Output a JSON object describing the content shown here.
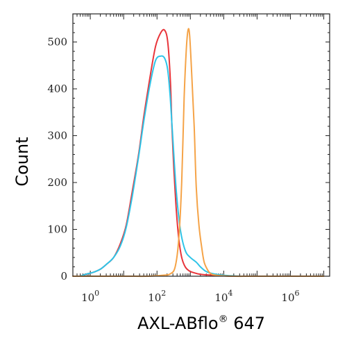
{
  "chart_data": {
    "type": "line",
    "xlabel": "AXL-ABflo",
    "xlabel_sup": "®",
    "xlabel_suffix": " 647",
    "ylabel": "Count",
    "x_scale": "log",
    "xlim": [
      0.3,
      15000000
    ],
    "ylim": [
      0,
      560
    ],
    "yticks": [
      0,
      100,
      200,
      300,
      400,
      500
    ],
    "xticks": [
      {
        "value": 1,
        "base": "10",
        "exp": "0"
      },
      {
        "value": 100,
        "base": "10",
        "exp": "2"
      },
      {
        "value": 10000,
        "base": "10",
        "exp": "4"
      },
      {
        "value": 1000000,
        "base": "10",
        "exp": "6"
      }
    ],
    "grid": false,
    "legend": "none",
    "series": [
      {
        "color": "#e8343a",
        "x": [
          0.5,
          0.8,
          1.2,
          2,
          3,
          5,
          8,
          12,
          18,
          28,
          40,
          60,
          90,
          130,
          170,
          210,
          250,
          280,
          320,
          380,
          450,
          550,
          700,
          900,
          1200,
          2000,
          5000,
          20000
        ],
        "y": [
          0,
          5,
          8,
          15,
          25,
          40,
          70,
          110,
          180,
          260,
          340,
          420,
          490,
          520,
          525,
          500,
          420,
          320,
          230,
          140,
          80,
          40,
          20,
          12,
          8,
          4,
          2,
          0
        ]
      },
      {
        "color": "#2ec4e8",
        "x": [
          0.5,
          0.8,
          1.2,
          2,
          3,
          5,
          8,
          12,
          18,
          28,
          40,
          60,
          90,
          130,
          170,
          210,
          250,
          300,
          380,
          500,
          700,
          1000,
          1500,
          2000,
          3000,
          5000,
          10000,
          30000
        ],
        "y": [
          0,
          5,
          8,
          15,
          25,
          40,
          65,
          105,
          170,
          255,
          330,
          405,
          460,
          470,
          465,
          440,
          380,
          290,
          180,
          100,
          55,
          40,
          30,
          20,
          10,
          5,
          2,
          0
        ]
      },
      {
        "color": "#f5a347",
        "x": [
          0.3,
          10,
          50,
          150,
          250,
          350,
          450,
          550,
          650,
          750,
          850,
          950,
          1100,
          1300,
          1500,
          1800,
          2200,
          2600,
          3200,
          4000,
          6000,
          20000,
          100000,
          10000000
        ],
        "y": [
          0,
          0,
          0,
          2,
          5,
          20,
          80,
          200,
          380,
          480,
          525,
          515,
          430,
          320,
          190,
          110,
          60,
          30,
          15,
          6,
          2,
          0,
          0,
          0
        ]
      }
    ]
  }
}
